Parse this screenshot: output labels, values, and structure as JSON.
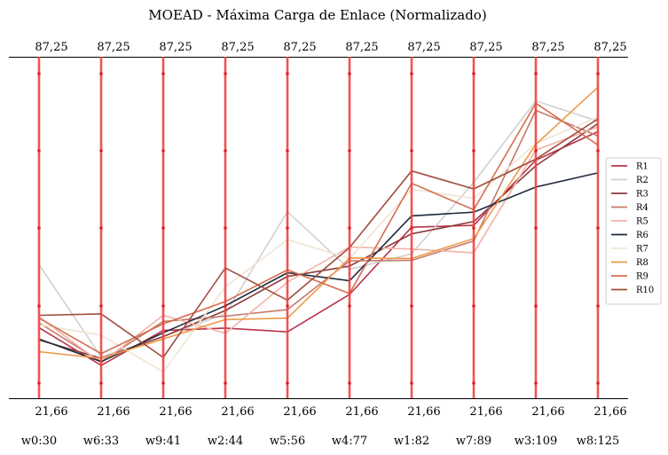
{
  "chart_data": {
    "type": "line",
    "subtype": "parallel-coordinates",
    "title": "MOEAD - Máxima Carga de Enlace (Normalizado)",
    "axes": [
      "w0:30",
      "w6:33",
      "w9:41",
      "w2:44",
      "w5:56",
      "w4:77",
      "w1:82",
      "w7:89",
      "w3:109",
      "w8:125"
    ],
    "top_tick_label": "87,25",
    "bottom_tick_label": "21,66",
    "ylim": [
      21.66,
      87.25
    ],
    "axis_color": "#f04040",
    "legend_position": "right",
    "series": [
      {
        "name": "R1",
        "color": "#b8334a",
        "values": [
          33.4,
          25.4,
          32.8,
          33.3,
          32.5,
          40.4,
          54.6,
          55.0,
          68.8,
          74.8
        ]
      },
      {
        "name": "R2",
        "color": "#d0d0d0",
        "values": [
          46.7,
          27.2,
          31.5,
          36.3,
          57.9,
          45.7,
          49.0,
          64.1,
          81.3,
          77.0
        ]
      },
      {
        "name": "R3",
        "color": "#8e3b3b",
        "values": [
          30.8,
          26.9,
          31.5,
          37.0,
          44.2,
          46.4,
          53.2,
          55.8,
          67.6,
          76.5
        ]
      },
      {
        "name": "R4",
        "color": "#c47a6a",
        "values": [
          34.4,
          26.2,
          34.7,
          35.8,
          37.2,
          47.5,
          47.6,
          51.7,
          79.3,
          73.9
        ]
      },
      {
        "name": "R5",
        "color": "#f2b2a6",
        "values": [
          35.7,
          25.9,
          36.0,
          32.2,
          43.0,
          50.4,
          50.0,
          49.2,
          70.9,
          75.8
        ]
      },
      {
        "name": "R6",
        "color": "#1f2a3e",
        "values": [
          31.0,
          26.2,
          32.3,
          38.0,
          45.0,
          43.3,
          57.0,
          57.8,
          63.1,
          66.1
        ]
      },
      {
        "name": "R7",
        "color": "#f0e4d2",
        "values": [
          34.0,
          31.8,
          24.0,
          42.0,
          52.0,
          48.0,
          62.6,
          60.7,
          72.3,
          77.9
        ]
      },
      {
        "name": "R8",
        "color": "#ee9a4c",
        "values": [
          28.3,
          26.9,
          31.0,
          35.1,
          35.4,
          48.1,
          48.0,
          52.2,
          72.1,
          84.2
        ]
      },
      {
        "name": "R9",
        "color": "#d46e4e",
        "values": [
          35.4,
          27.9,
          34.2,
          38.9,
          45.6,
          40.6,
          63.9,
          58.3,
          80.8,
          72.0
        ]
      },
      {
        "name": "R10",
        "color": "#a14c3c",
        "values": [
          36.0,
          36.3,
          27.1,
          46.0,
          39.2,
          50.3,
          66.5,
          62.7,
          69.0,
          77.5
        ]
      }
    ]
  }
}
